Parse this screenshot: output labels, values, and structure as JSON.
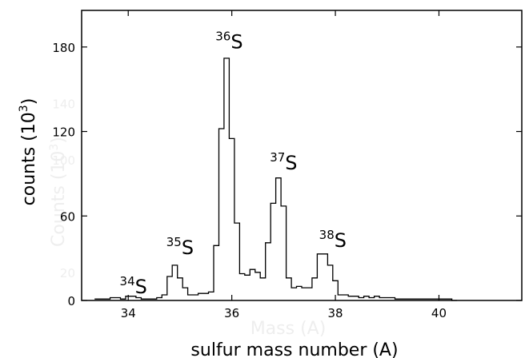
{
  "chart_data": {
    "type": "line",
    "step": true,
    "xlabel": "sulfur  mass  number (A)",
    "ylabel": "counts  (10",
    "ylabel_sup": "3",
    "ylabel_close": ")",
    "xlim": [
      33.1,
      41.6
    ],
    "ylim": [
      0,
      206
    ],
    "xticks": [
      34,
      36,
      38,
      40
    ],
    "yticks": [
      0,
      60,
      120,
      180
    ],
    "grid": false,
    "ghost_text": {
      "xlabel": "Mass (A)",
      "ylabel": "Counts (10",
      "ylabel_sup": "3",
      "ylabel_close": ")",
      "yticks": [
        20,
        100,
        140
      ]
    },
    "annotations": [
      {
        "mass": "34",
        "symbol": "S",
        "x": 34.1,
        "y": 5
      },
      {
        "mass": "35",
        "symbol": "S",
        "x": 35.0,
        "y": 33
      },
      {
        "mass": "36",
        "symbol": "S",
        "x": 35.95,
        "y": 179
      },
      {
        "mass": "37",
        "symbol": "S",
        "x": 37.0,
        "y": 93
      },
      {
        "mass": "38",
        "symbol": "S",
        "x": 37.95,
        "y": 38
      }
    ],
    "series": [
      {
        "bin_width": 0.1,
        "x": [
          33.4,
          33.5,
          33.6,
          33.7,
          33.8,
          33.9,
          34.0,
          34.1,
          34.2,
          34.3,
          34.4,
          34.5,
          34.6,
          34.7,
          34.8,
          34.9,
          35.0,
          35.1,
          35.2,
          35.3,
          35.4,
          35.5,
          35.6,
          35.7,
          35.8,
          35.9,
          36.0,
          36.1,
          36.2,
          36.3,
          36.4,
          36.5,
          36.6,
          36.7,
          36.8,
          36.9,
          37.0,
          37.1,
          37.2,
          37.3,
          37.4,
          37.5,
          37.6,
          37.7,
          37.8,
          37.9,
          38.0,
          38.1,
          38.2,
          38.3,
          38.4,
          38.5,
          38.6,
          38.7,
          38.8,
          38.9,
          39.0,
          39.1,
          39.2,
          39.3,
          39.4,
          39.5,
          39.6,
          39.7,
          39.8,
          39.9,
          40.0,
          40.1,
          40.2,
          40.3
        ],
        "values": [
          1,
          1,
          1,
          2,
          2,
          1,
          3,
          3,
          2,
          1,
          1,
          1,
          2,
          4,
          17,
          25,
          16,
          9,
          4,
          4,
          5,
          5,
          6,
          39,
          122,
          172,
          115,
          55,
          19,
          18,
          22,
          20,
          16,
          41,
          69,
          87,
          67,
          16,
          9,
          10,
          9,
          9,
          16,
          33,
          33,
          25,
          14,
          4,
          4,
          3,
          3,
          2,
          3,
          2,
          3,
          2,
          2,
          2,
          1,
          1,
          1,
          1,
          1,
          1,
          1,
          1,
          1,
          1,
          1,
          0
        ]
      }
    ]
  }
}
